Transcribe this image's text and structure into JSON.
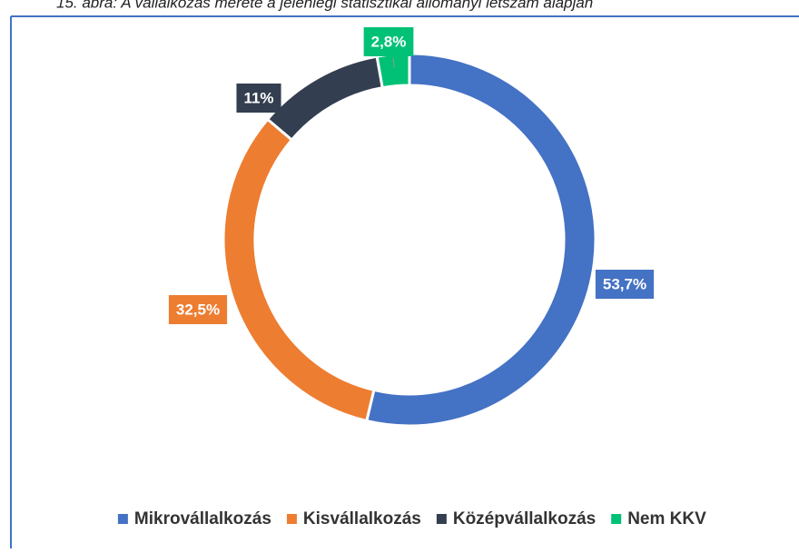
{
  "chart_data": {
    "type": "donut",
    "title": "15. ábra: A vállalkozás mérete a jelenlegi statisztikai állományi létszám alapján",
    "categories": [
      "Mikrovállalkozás",
      "Kisvállalkozás",
      "Középvállalkozás",
      "Nem KKV"
    ],
    "values": [
      53.7,
      32.5,
      11,
      2.8
    ],
    "value_labels": [
      "53,7%",
      "32,5%",
      "11%",
      "2,8%"
    ],
    "colors": [
      "#4472c4",
      "#ed7d31",
      "#333f50",
      "#00c176"
    ],
    "legend": "bottom"
  }
}
